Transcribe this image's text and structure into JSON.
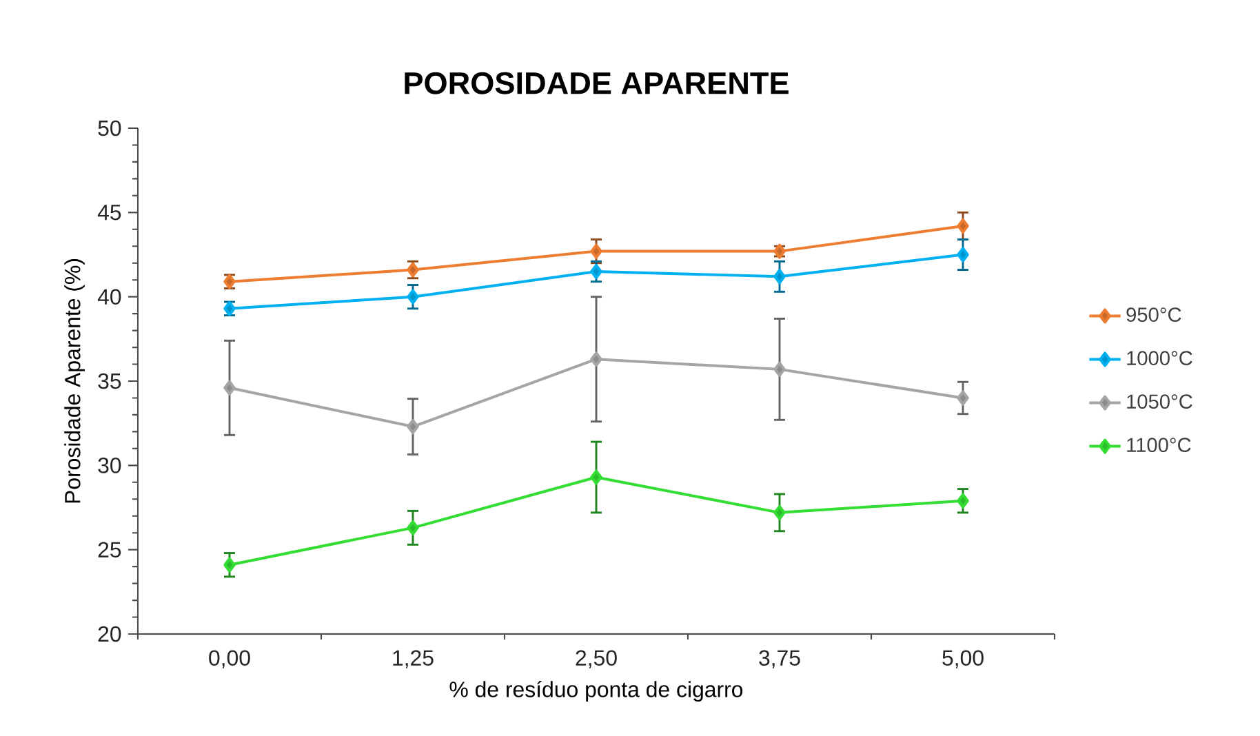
{
  "chart_data": {
    "type": "line",
    "title": "POROSIDADE APARENTE",
    "xlabel": "% de resíduo ponta de cigarro",
    "ylabel": "Porosidade Aparente (%)",
    "categories": [
      "0,00",
      "1,25",
      "2,50",
      "3,75",
      "5,00"
    ],
    "series": [
      {
        "name": "950°C",
        "color": "#ed7d31",
        "values": [
          40.9,
          41.6,
          42.7,
          42.7,
          44.2
        ],
        "errors": [
          0.4,
          0.5,
          0.7,
          0.3,
          0.8
        ]
      },
      {
        "name": "1000°C",
        "color": "#00b0f0",
        "values": [
          39.3,
          40.0,
          41.5,
          41.2,
          42.5
        ],
        "errors": [
          0.4,
          0.7,
          0.6,
          0.9,
          0.9
        ]
      },
      {
        "name": "1050°C",
        "color": "#a5a5a5",
        "values": [
          34.6,
          32.3,
          36.3,
          35.7,
          34.0
        ],
        "errors": [
          2.8,
          1.65,
          3.7,
          3.0,
          0.95
        ]
      },
      {
        "name": "1100°C",
        "color": "#33dd33",
        "values": [
          24.1,
          26.3,
          29.3,
          27.2,
          27.9
        ],
        "errors": [
          0.7,
          1.0,
          2.1,
          1.1,
          0.7
        ]
      }
    ],
    "ylim": [
      20,
      50
    ],
    "yticks": [
      20,
      25,
      30,
      35,
      40,
      45,
      50
    ],
    "grid": false,
    "legend": "right",
    "marker": "diamond",
    "line_style": "solid"
  }
}
